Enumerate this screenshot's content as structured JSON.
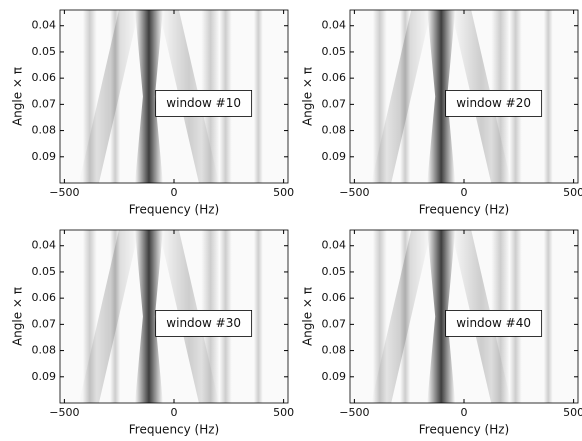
{
  "chart_data": [
    {
      "type": "image",
      "xlabel": "Frequency (Hz)",
      "ylabel": "Angle × π",
      "annotation": "window #10",
      "xlim": [
        -520,
        520
      ],
      "ylim": [
        0.034,
        0.1
      ],
      "y_inverted": true,
      "xticks": [
        {
          "value": -500,
          "label": "−500"
        },
        0,
        500
      ],
      "yticks": [
        0.04,
        0.05,
        0.06,
        0.07,
        0.08,
        0.09
      ]
    },
    {
      "type": "image",
      "xlabel": "Frequency (Hz)",
      "ylabel": "Angle × π",
      "annotation": "window #20",
      "xlim": [
        -520,
        520
      ],
      "ylim": [
        0.034,
        0.1
      ],
      "y_inverted": true,
      "xticks": [
        {
          "value": -500,
          "label": "−500"
        },
        0,
        500
      ],
      "yticks": [
        0.04,
        0.05,
        0.06,
        0.07,
        0.08,
        0.09
      ]
    },
    {
      "type": "image",
      "xlabel": "Frequency (Hz)",
      "ylabel": "Angle × π",
      "annotation": "window #30",
      "xlim": [
        -520,
        520
      ],
      "ylim": [
        0.034,
        0.1
      ],
      "y_inverted": true,
      "xticks": [
        {
          "value": -500,
          "label": "−500"
        },
        0,
        500
      ],
      "yticks": [
        0.04,
        0.05,
        0.06,
        0.07,
        0.08,
        0.09
      ]
    },
    {
      "type": "image",
      "xlabel": "Frequency (Hz)",
      "ylabel": "Angle × π",
      "annotation": "window #40",
      "xlim": [
        -520,
        520
      ],
      "ylim": [
        0.034,
        0.1
      ],
      "y_inverted": true,
      "xticks": [
        {
          "value": -500,
          "label": "−500"
        },
        0,
        500
      ],
      "yticks": [
        0.04,
        0.05,
        0.06,
        0.07,
        0.08,
        0.09
      ]
    }
  ]
}
